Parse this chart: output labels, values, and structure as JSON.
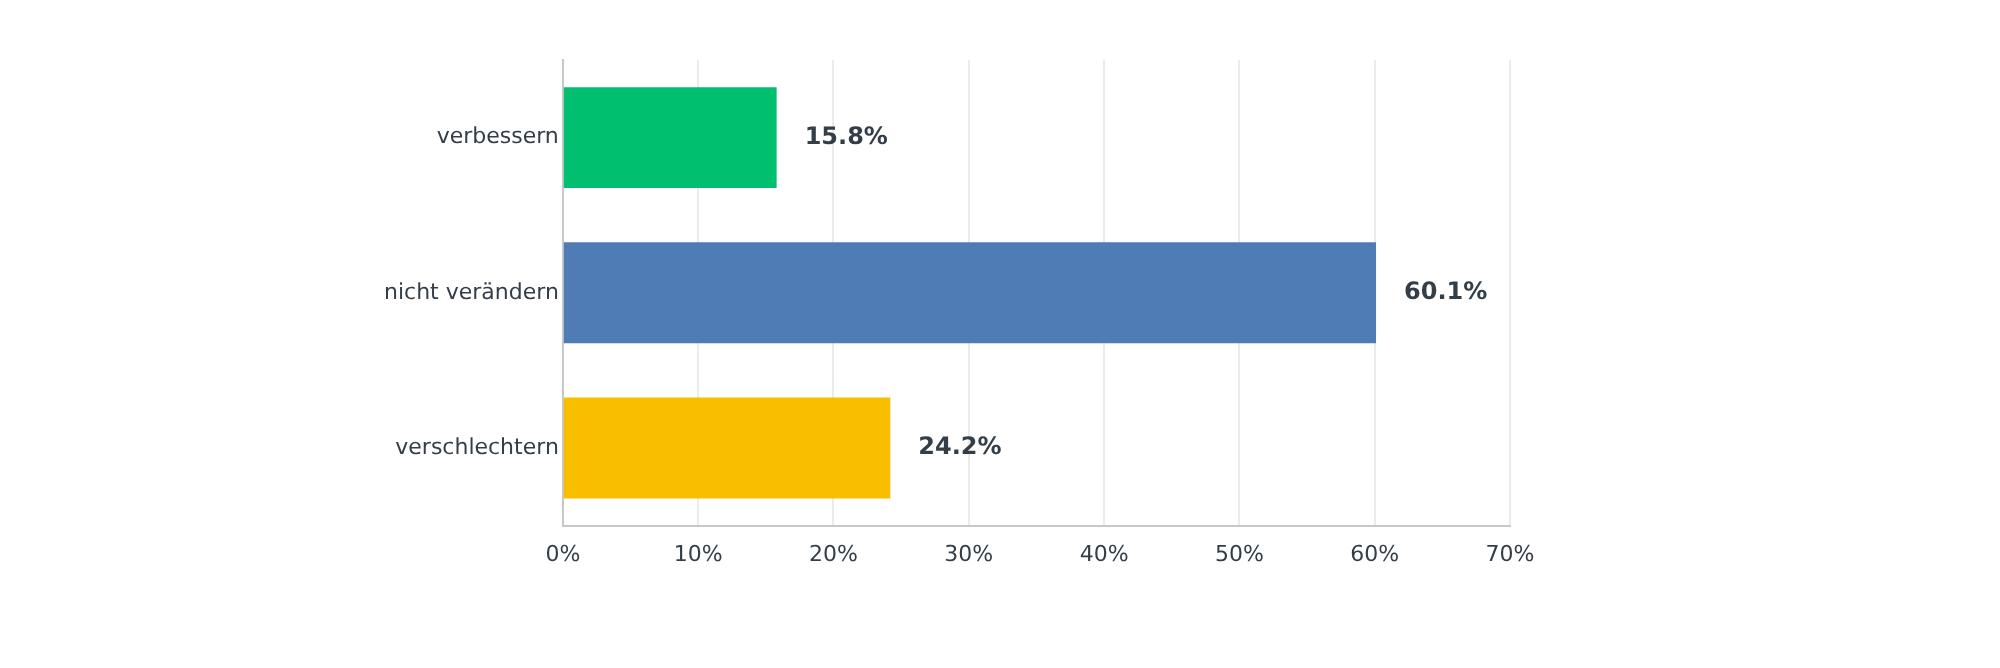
{
  "chart_data": {
    "type": "bar",
    "orientation": "horizontal",
    "categories": [
      "verbessern",
      "nicht verändern",
      "verschlechtern"
    ],
    "values": [
      15.8,
      60.1,
      24.2
    ],
    "colors": [
      "#00bf6f",
      "#507cb6",
      "#f9be00"
    ],
    "value_labels": [
      "15.8%",
      "60.1%",
      "24.2%"
    ],
    "xlim": [
      0,
      70
    ],
    "xticks": [
      {
        "value": 0,
        "label": "0%"
      },
      {
        "value": 10,
        "label": "10%"
      },
      {
        "value": 20,
        "label": "20%"
      },
      {
        "value": 30,
        "label": "30%"
      },
      {
        "value": 40,
        "label": "40%"
      },
      {
        "value": 50,
        "label": "50%"
      },
      {
        "value": 60,
        "label": "60%"
      },
      {
        "value": 70,
        "label": "70%"
      }
    ],
    "grid": "x",
    "legend": false
  }
}
